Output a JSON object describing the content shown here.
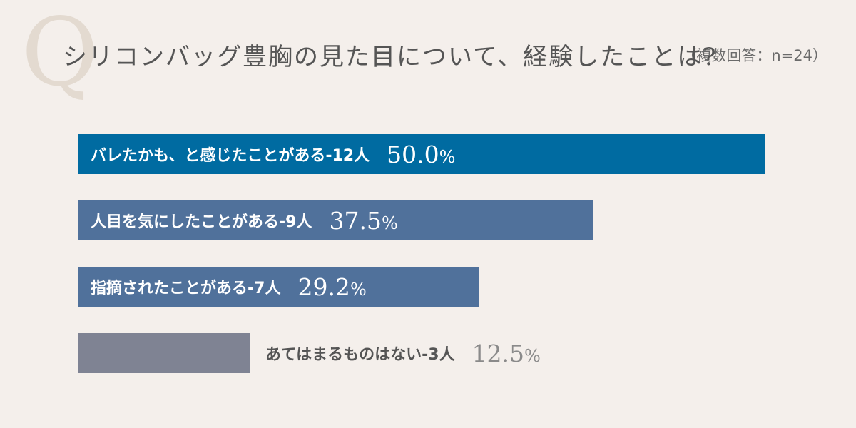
{
  "header": {
    "q_mark": "Q",
    "question": "シリコンバッグ豊胸の見た目について、経験したことは?",
    "note": "（複数回答：n=24）"
  },
  "colors": {
    "background": "#f4efeb",
    "bar_primary": "#006ba1",
    "bar_secondary": "#50719b",
    "bar_muted": "#7f8393",
    "label_on_bar": "#ffffff",
    "label_outside": "#555555",
    "pct_outside": "#8a8a8a"
  },
  "chart_data": {
    "type": "bar",
    "orientation": "horizontal",
    "xlim": [
      0,
      54
    ],
    "categories": [
      "バレたかも、と感じたことがある-12人",
      "人目を気にしたことがある-9人",
      "指摘されたことがある-7人",
      "あてはまるものはない-3人"
    ],
    "values": [
      50.0,
      37.5,
      29.2,
      12.5
    ],
    "value_labels": [
      "50.0",
      "37.5",
      "29.2",
      "12.5"
    ],
    "unit": "%",
    "bar_colors": [
      "#006ba1",
      "#50719b",
      "#50719b",
      "#7f8393"
    ],
    "label_inside": [
      true,
      true,
      true,
      false
    ]
  }
}
